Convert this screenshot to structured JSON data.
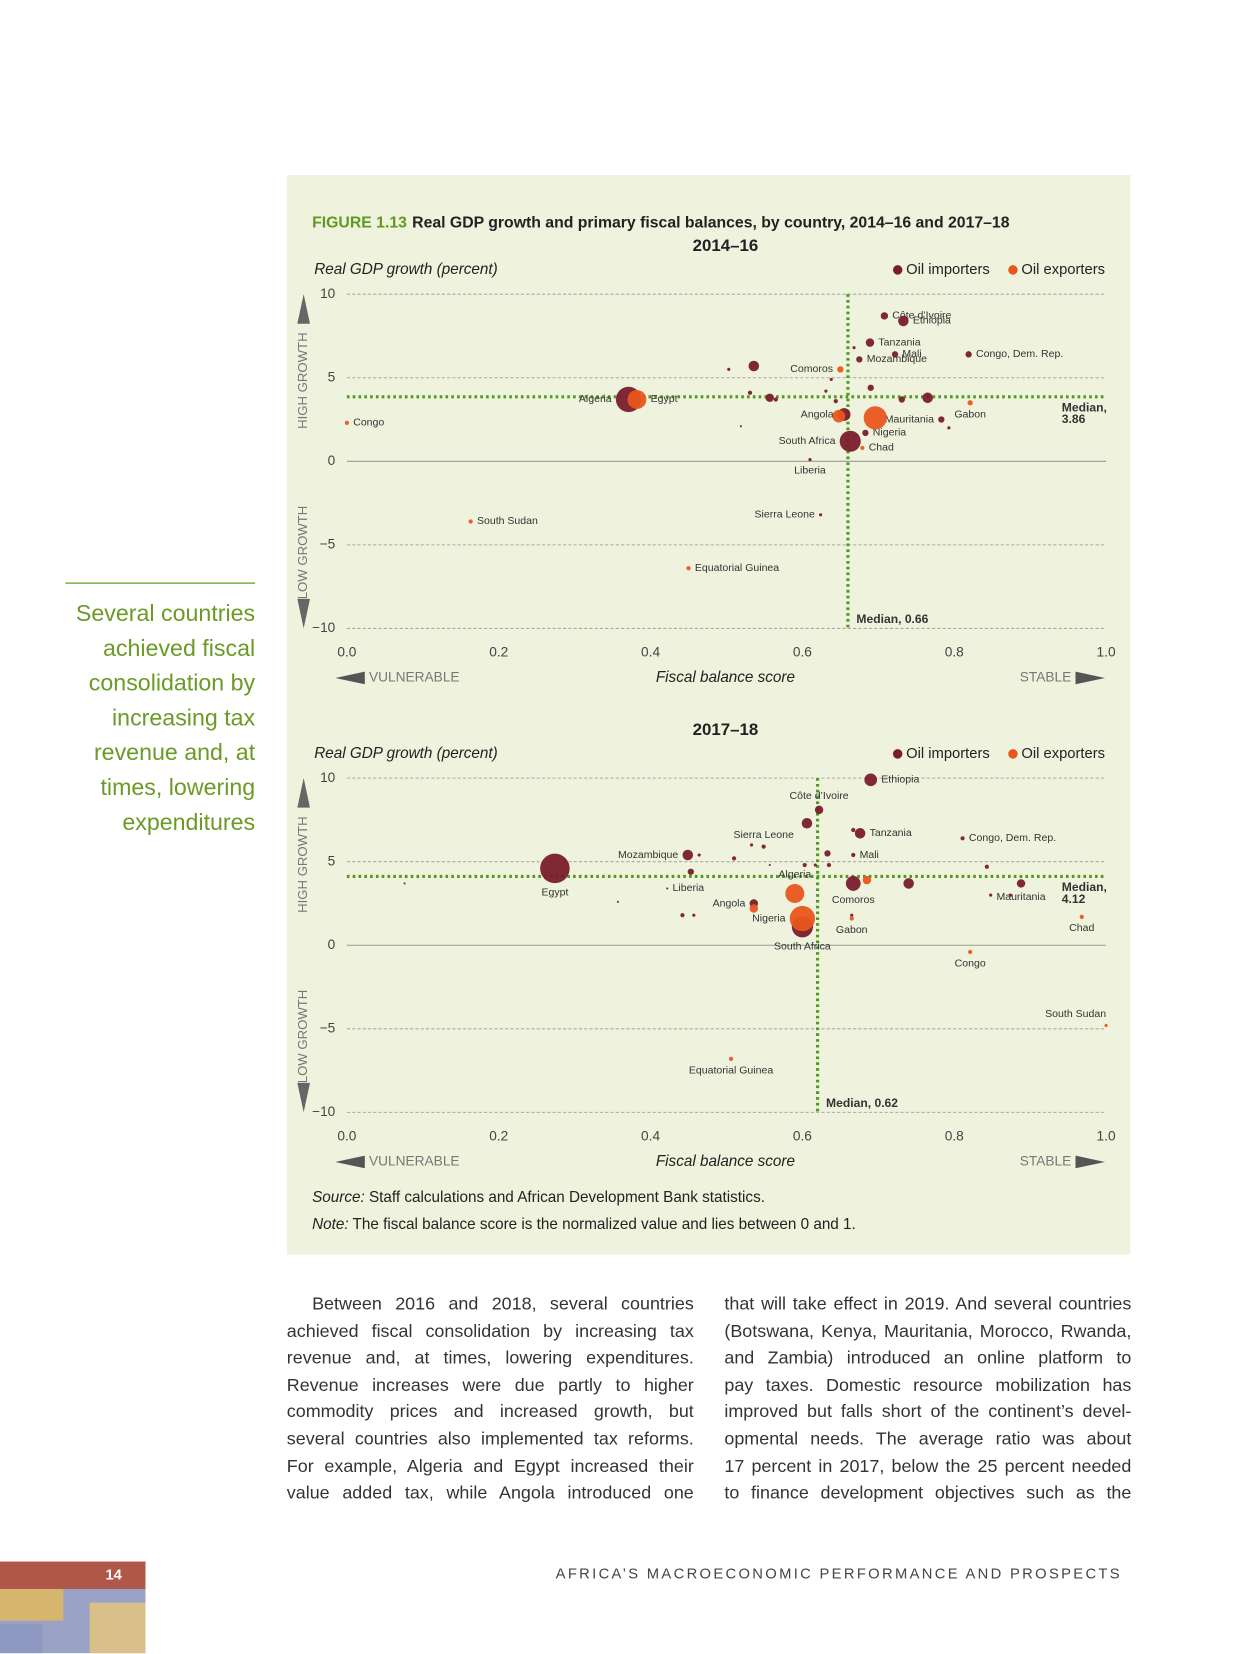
{
  "figure": {
    "number": "FIGURE 1.13",
    "title": "Real GDP growth and primary fiscal balances, by country, 2014–16 and 2017–18"
  },
  "chart_data": [
    {
      "type": "scatter",
      "title": "2014–16",
      "y_label": "Real GDP growth (percent)",
      "x_label": "Fiscal balance score",
      "x_left_label": "VULNERABLE",
      "x_right_label": "STABLE",
      "y_top_label": "HIGH GROWTH",
      "y_bottom_label": "LOW GROWTH",
      "xlim": [
        0,
        1
      ],
      "ylim": [
        -10,
        10
      ],
      "xticks": [
        {
          "value": 0,
          "label": "0.0"
        },
        0.2,
        0.4,
        0.6,
        0.8,
        {
          "value": 1,
          "label": "1.0"
        }
      ],
      "yticks": [
        10,
        5,
        0,
        {
          "value": -5,
          "label": "−5"
        },
        {
          "value": -10,
          "label": "−10"
        }
      ],
      "grid": true,
      "median_x": {
        "value": 0.66,
        "label": [
          "Median, 0.66"
        ]
      },
      "median_y": {
        "value": 3.86,
        "label": [
          "Median,",
          "3.86"
        ]
      },
      "series": [
        {
          "name": "Oil importers",
          "color": "#7a1c2c",
          "x": [
            0.708,
            0.733,
            0.689,
            0.722,
            0.819,
            0.675,
            0.371,
            0.655,
            0.783,
            0.683,
            0.663,
            0.61,
            0.624,
            0.536,
            0.531,
            0.557,
            0.565,
            0.765,
            0.731,
            0.69,
            0.668,
            0.503,
            0.638,
            0.793,
            0.519,
            0.631,
            0.644
          ],
          "values": [
            8.7,
            8.4,
            7.1,
            6.4,
            6.4,
            6.1,
            3.7,
            2.8,
            2.5,
            1.7,
            1.2,
            0.1,
            -3.2,
            5.7,
            4.1,
            3.8,
            3.7,
            3.8,
            3.7,
            4.4,
            6.8,
            5.5,
            4.9,
            2.0,
            2.1,
            4.2,
            3.6
          ],
          "sizes": [
            3.5,
            5,
            4,
            3,
            3,
            3,
            12,
            6,
            3,
            3,
            10,
            1.5,
            1.5,
            5,
            2,
            4,
            2,
            5,
            3,
            3,
            1.5,
            1.5,
            1.5,
            1.5,
            1,
            1.5,
            2
          ],
          "labels": [
            "Côte d’Ivoire",
            "Ethiopia",
            "Tanzania",
            "Mali",
            "Congo, Dem. Rep.",
            "Mozambique",
            "Algeria",
            "Angola",
            "Mauritania",
            "Nigeria",
            "South Africa",
            "Liberia",
            "Sierra Leone",
            null,
            null,
            null,
            null,
            null,
            null,
            null,
            null,
            null,
            null,
            null,
            null,
            null,
            null
          ]
        },
        {
          "name": "Oil exporters",
          "color": "#e8561c",
          "x": [
            0.65,
            0.382,
            0.0,
            0.821,
            0.648,
            0.696,
            0.679,
            0.163,
            0.45
          ],
          "values": [
            5.5,
            3.7,
            2.3,
            3.5,
            2.7,
            2.6,
            0.8,
            -3.6,
            -6.4
          ],
          "sizes": [
            3,
            9,
            2,
            2.5,
            6,
            11,
            2,
            2,
            2
          ],
          "labels": [
            "Comoros",
            "Egypt",
            "Congo",
            "Gabon",
            null,
            null,
            "Chad",
            "South Sudan",
            "Equatorial Guinea"
          ]
        }
      ]
    },
    {
      "type": "scatter",
      "title": "2017–18",
      "y_label": "Real GDP growth (percent)",
      "x_label": "Fiscal balance score",
      "x_left_label": "VULNERABLE",
      "x_right_label": "STABLE",
      "y_top_label": "HIGH GROWTH",
      "y_bottom_label": "LOW GROWTH",
      "xlim": [
        0,
        1
      ],
      "ylim": [
        -10,
        10
      ],
      "xticks": [
        {
          "value": 0,
          "label": "0.0"
        },
        0.2,
        0.4,
        0.6,
        0.8,
        {
          "value": 1,
          "label": "1.0"
        }
      ],
      "yticks": [
        10,
        5,
        0,
        {
          "value": -5,
          "label": "−5"
        },
        {
          "value": -10,
          "label": "−10"
        }
      ],
      "grid": true,
      "median_x": {
        "value": 0.62,
        "label": [
          "Median, 0.62"
        ]
      },
      "median_y": {
        "value": 4.12,
        "label": [
          "Median,",
          "4.12"
        ]
      },
      "series": [
        {
          "name": "Oil importers",
          "color": "#7a1c2c",
          "x": [
            0.69,
            0.622,
            0.606,
            0.676,
            0.667,
            0.667,
            0.549,
            0.533,
            0.449,
            0.464,
            0.453,
            0.274,
            0.422,
            0.536,
            0.6,
            0.667,
            0.74,
            0.665,
            0.811,
            0.888,
            0.843,
            0.848,
            0.874,
            0.076,
            0.442,
            0.457,
            0.51,
            0.603,
            0.617,
            0.635,
            0.633,
            0.557,
            0.357
          ],
          "values": [
            9.9,
            8.1,
            7.3,
            6.7,
            6.9,
            5.4,
            5.9,
            6.0,
            5.4,
            5.4,
            4.4,
            4.6,
            3.4,
            2.5,
            1.1,
            3.7,
            3.7,
            1.8,
            6.4,
            3.7,
            4.7,
            3.0,
            3.0,
            3.7,
            1.8,
            1.8,
            5.2,
            4.8,
            4.8,
            4.8,
            5.5,
            4.8,
            2.6
          ],
          "sizes": [
            6,
            4,
            5,
            5,
            2,
            2,
            2,
            1.5,
            5,
            1.5,
            3,
            14,
            1,
            4,
            10,
            7,
            5,
            1.5,
            2,
            4,
            2,
            1.5,
            1.5,
            1,
            2,
            1.5,
            2,
            2,
            1.5,
            2,
            3,
            1,
            1
          ],
          "labels": [
            "Ethiopia",
            "Côte d’Ivoire",
            null,
            "Tanzania",
            null,
            "Mali",
            "Sierra Leone",
            null,
            "Mozambique",
            null,
            null,
            "Egypt",
            "Liberia",
            "Angola",
            "South Africa",
            "Comoros",
            null,
            null,
            "Congo, Dem. Rep.",
            "Mauritania",
            null,
            null,
            null,
            null,
            null,
            null,
            null,
            null,
            null,
            null,
            null,
            null,
            null
          ]
        },
        {
          "name": "Oil exporters",
          "color": "#e8561c",
          "x": [
            0.59,
            0.536,
            0.6,
            0.685,
            0.665,
            0.968,
            0.821,
            1.0,
            0.506
          ],
          "values": [
            3.1,
            2.2,
            1.6,
            3.9,
            1.6,
            1.7,
            -0.4,
            -4.8,
            -6.8
          ],
          "sizes": [
            9,
            4,
            12,
            4,
            2,
            2,
            2,
            1.5,
            2
          ],
          "labels": [
            "Algeria",
            null,
            "Nigeria",
            null,
            "Gabon",
            "Chad",
            "Congo",
            "South Sudan",
            "Equatorial Guinea"
          ]
        }
      ]
    }
  ],
  "source": {
    "lead": "Source:",
    "text": " Staff calculations and African Development Bank statistics."
  },
  "note": {
    "lead": "Note:",
    "text": " The fiscal balance score is the normalized value and lies between 0 and 1."
  },
  "sidebar": [
    "Several countries",
    "achieved fiscal",
    "consolidation by",
    "increasing tax",
    "revenue and, at",
    "times, lowering",
    "expenditures"
  ],
  "body": {
    "column1": [
      "Between 2016 and 2018, several countries",
      "achieved fiscal consolidation by increasing tax",
      "revenue and, at times, lowering expenditures.",
      "Revenue increases were due partly to higher",
      "commodity prices and increased growth, but",
      "several countries also implemented tax reforms.",
      "For example, Algeria and Egypt increased their",
      "value added tax, while Angola introduced one"
    ],
    "column2": [
      "that will take effect in 2019. And several countries",
      "(Botswana, Kenya, Mauritania, Morocco, Rwanda,",
      "and Zambia) introduced an online platform to",
      "pay taxes. Domestic resource mobilization has",
      "improved but falls short of the continent’s devel-",
      "opmental needs. The average ratio was about",
      "17 percent in 2017, below the 25 percent needed",
      "to finance development objectives such as the"
    ]
  },
  "footer": {
    "running_title": "AFRICA’S MACROECONOMIC PERFORMANCE AND PROSPECTS",
    "page_number": "14"
  }
}
